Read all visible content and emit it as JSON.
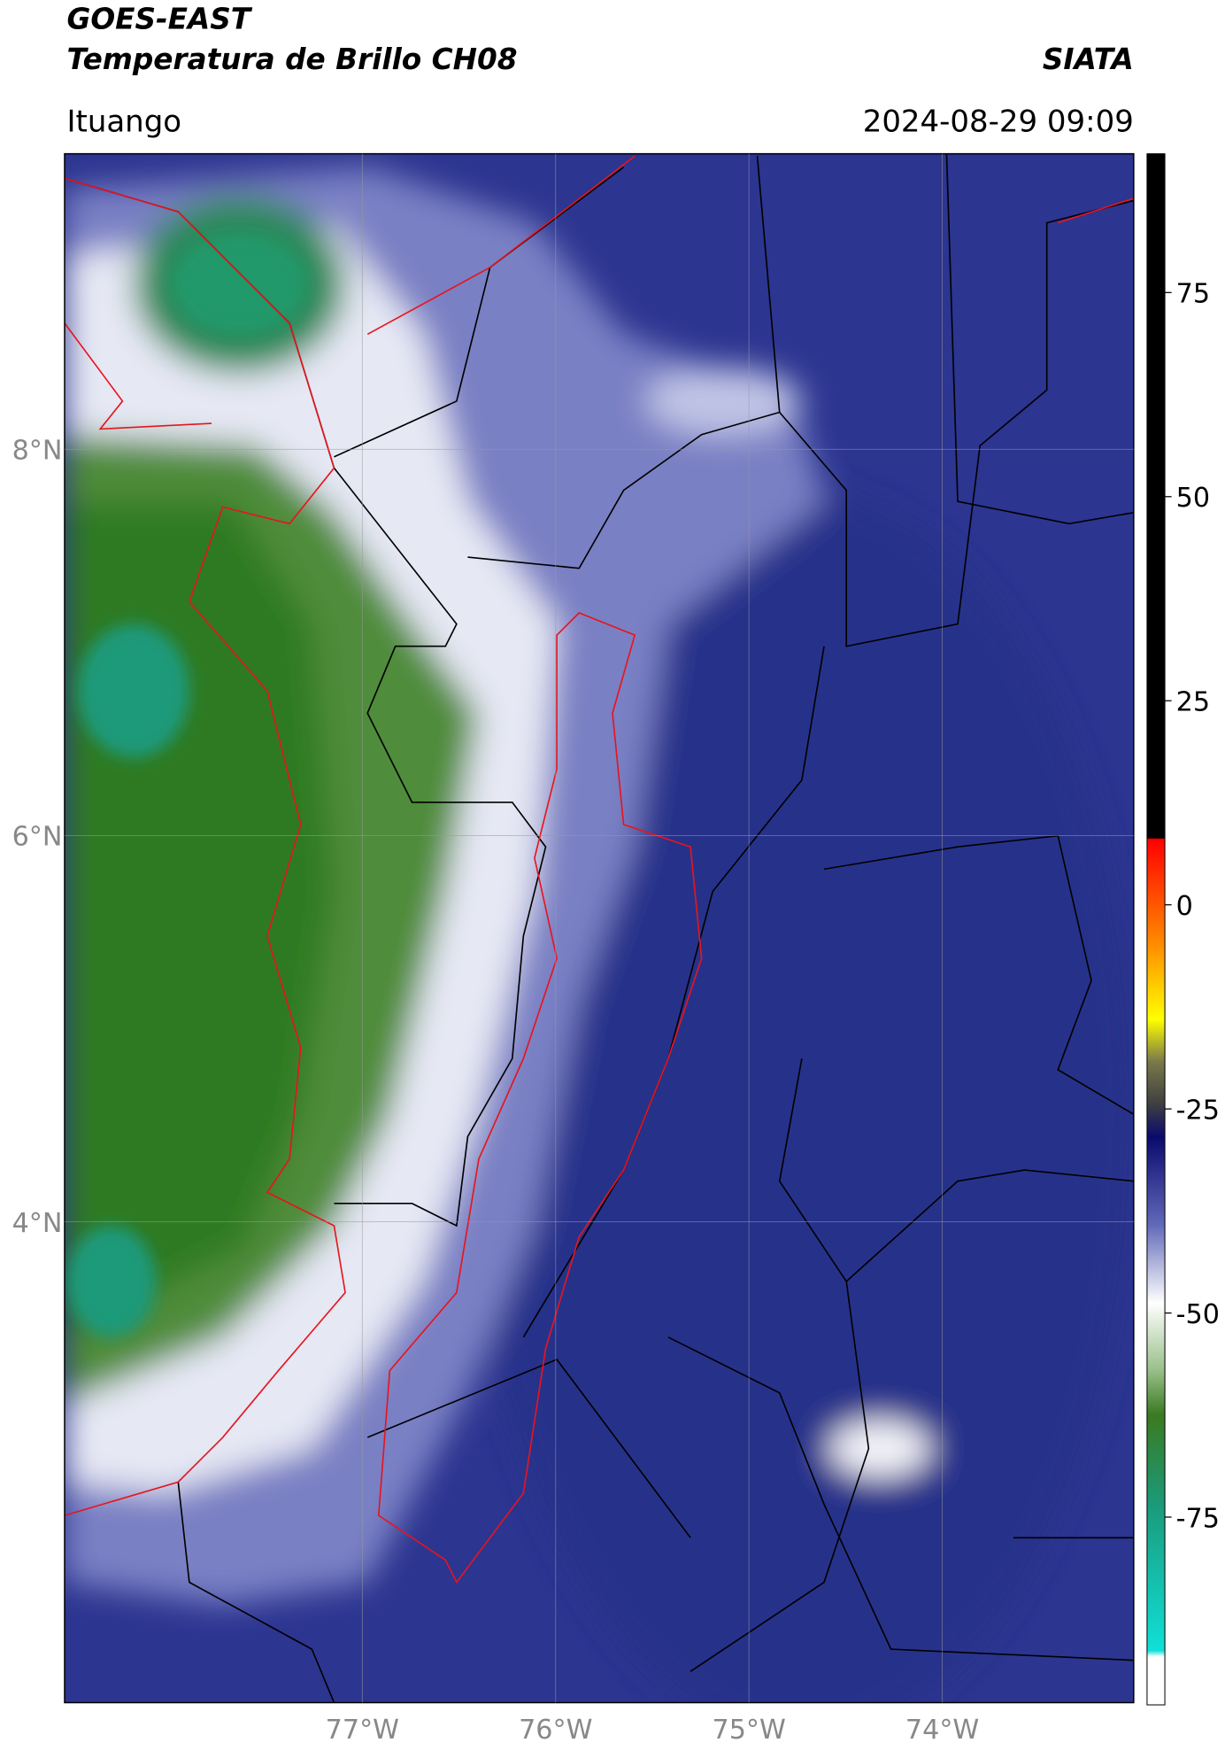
{
  "header": {
    "title": "GOES-EAST",
    "subtitle": "Temperatura de Brillo CH08",
    "source": "SIATA",
    "location": "Ituango",
    "datetime": "2024-08-29 09:09"
  },
  "map": {
    "xlim": [
      -78.54,
      -73.01
    ],
    "ylim": [
      1.51,
      9.53
    ],
    "xticks": [
      {
        "value": -77,
        "label": "77°W"
      },
      {
        "value": -76,
        "label": "76°W"
      },
      {
        "value": -75,
        "label": "75°W"
      },
      {
        "value": -74,
        "label": "74°W"
      }
    ],
    "yticks": [
      {
        "value": 8,
        "label": "8°N"
      },
      {
        "value": 6,
        "label": "6°N"
      },
      {
        "value": 4,
        "label": "4°N"
      }
    ]
  },
  "colorbar": {
    "lim": [
      -98,
      92
    ],
    "ticks": [
      75,
      50,
      25,
      0,
      -25,
      -50,
      -75
    ]
  }
}
